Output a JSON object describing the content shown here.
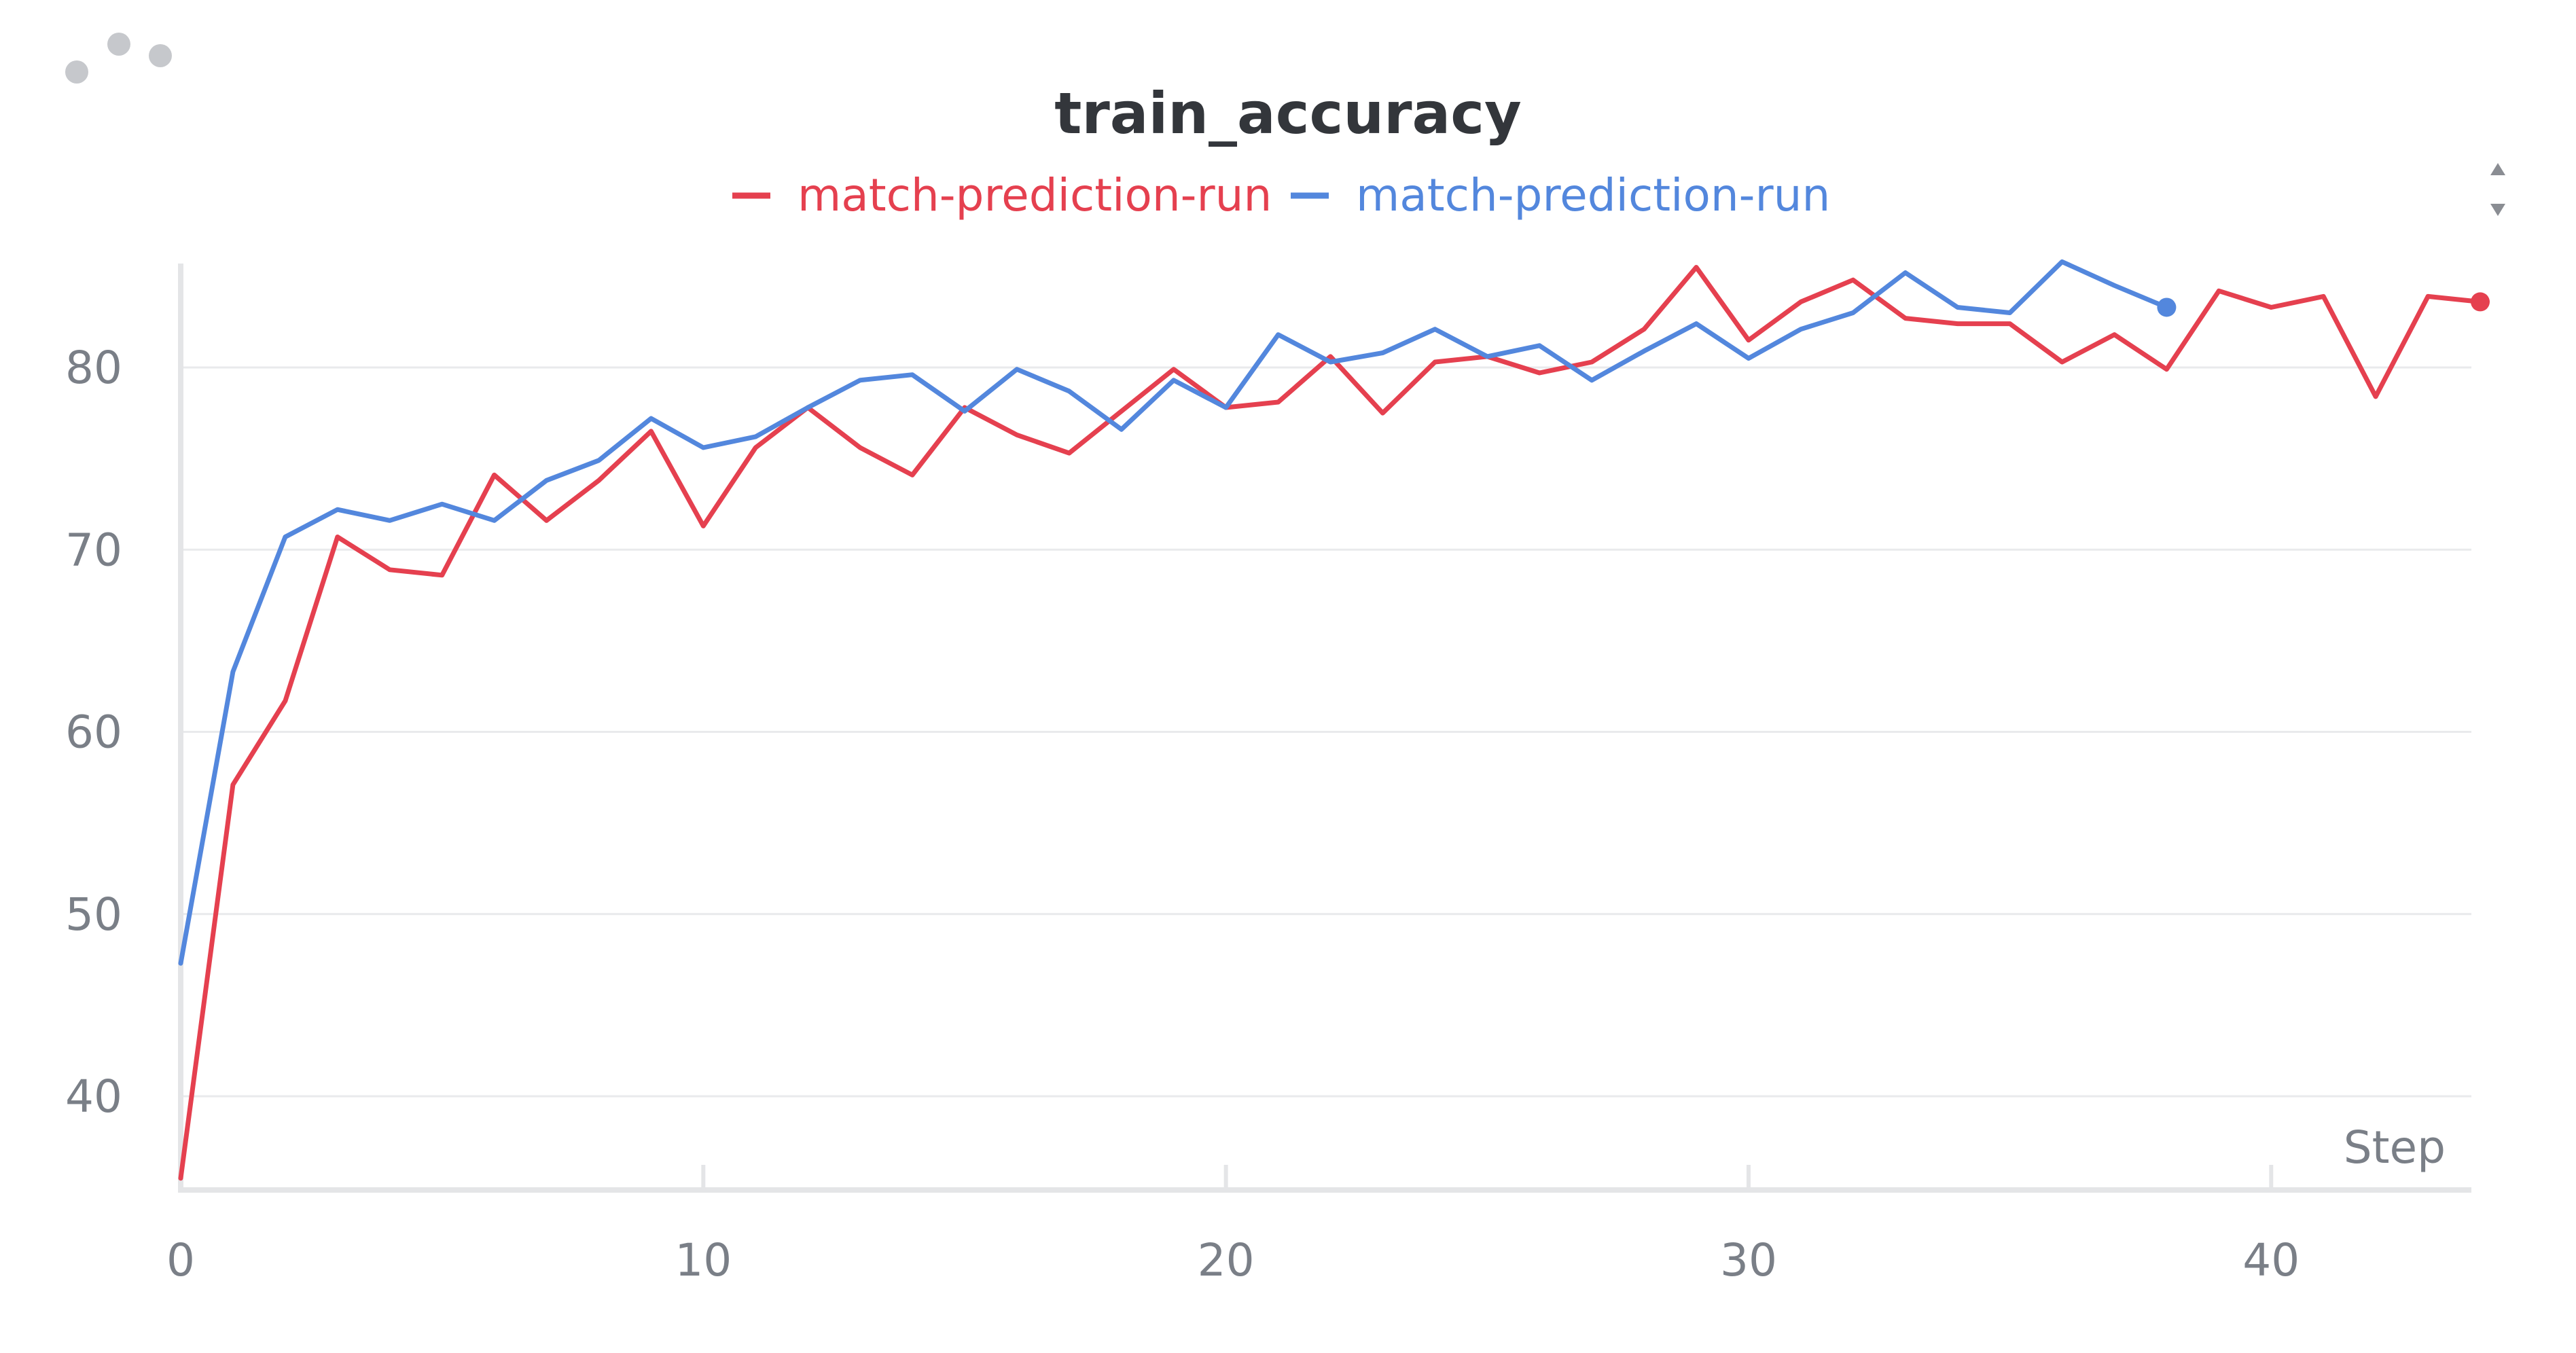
{
  "panel": {
    "menu_icon": "ellipsis-icon",
    "scroll_icon": "sort-arrows-icon"
  },
  "chart_data": {
    "type": "line",
    "title": "train_accuracy",
    "xlabel": "Step",
    "ylabel": "",
    "xlim": [
      0,
      44
    ],
    "ylim": [
      35,
      87
    ],
    "xticks": [
      0,
      10,
      20,
      30,
      40
    ],
    "yticks": [
      40,
      50,
      60,
      70,
      80
    ],
    "grid": true,
    "legend_position": "top-center",
    "series": [
      {
        "name": "match-prediction-run",
        "color": "#e5404f",
        "x": [
          0,
          1,
          2,
          3,
          4,
          5,
          6,
          7,
          8,
          9,
          10,
          11,
          12,
          13,
          14,
          15,
          16,
          17,
          18,
          19,
          20,
          21,
          22,
          23,
          24,
          25,
          26,
          27,
          28,
          29,
          30,
          31,
          32,
          33,
          34,
          35,
          36,
          37,
          38,
          39,
          40,
          41,
          42,
          43,
          44
        ],
        "values": [
          35.5,
          57.1,
          61.7,
          70.7,
          68.9,
          68.6,
          74.1,
          71.6,
          73.8,
          76.5,
          71.3,
          75.6,
          77.8,
          75.6,
          74.1,
          77.8,
          76.3,
          75.3,
          77.6,
          79.9,
          77.8,
          78.1,
          80.6,
          77.5,
          80.3,
          80.6,
          79.7,
          80.3,
          82.1,
          85.5,
          81.5,
          83.6,
          84.8,
          82.7,
          82.4,
          82.4,
          80.3,
          81.8,
          79.9,
          84.2,
          83.3,
          83.9,
          78.4,
          83.9,
          83.6
        ]
      },
      {
        "name": "match-prediction-run",
        "color": "#5387dd",
        "x": [
          0,
          1,
          2,
          3,
          4,
          5,
          6,
          7,
          8,
          9,
          10,
          11,
          12,
          13,
          14,
          15,
          16,
          17,
          18,
          19,
          20,
          21,
          22,
          23,
          24,
          25,
          26,
          27,
          28,
          29,
          30,
          31,
          32,
          33,
          34,
          35,
          36,
          37,
          38
        ],
        "values": [
          47.3,
          63.3,
          70.7,
          72.2,
          71.6,
          72.5,
          71.6,
          73.8,
          74.9,
          77.2,
          75.6,
          76.2,
          77.8,
          79.3,
          79.6,
          77.6,
          79.9,
          78.7,
          76.6,
          79.3,
          77.8,
          81.8,
          80.3,
          80.8,
          82.1,
          80.6,
          81.2,
          79.3,
          80.9,
          82.4,
          80.5,
          82.1,
          83.0,
          85.2,
          83.3,
          83.0,
          85.8,
          84.5,
          83.3
        ]
      }
    ]
  }
}
